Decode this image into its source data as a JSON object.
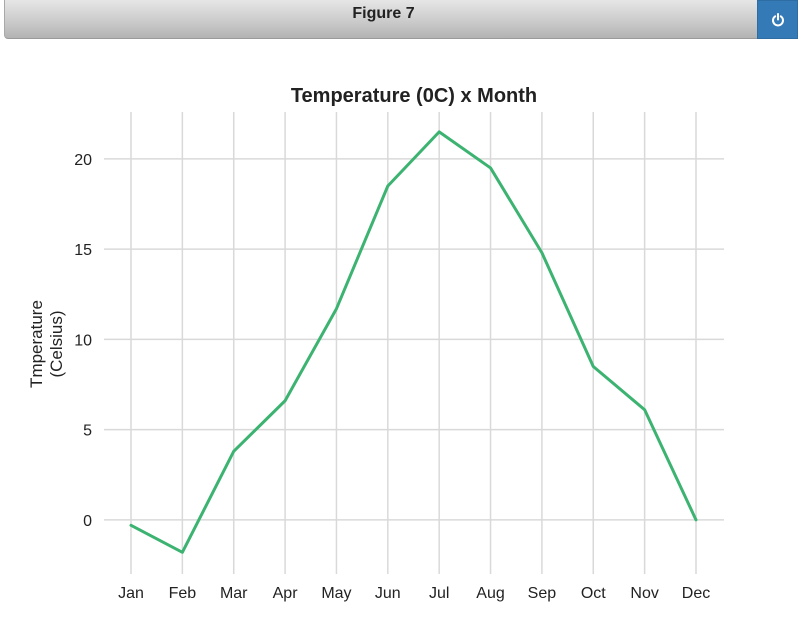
{
  "window": {
    "figure_title": "Figure 7"
  },
  "icons": {
    "power": "power-icon"
  },
  "colors": {
    "line": "#3cb371",
    "grid": "#d9d9d9",
    "button": "#337ab7"
  },
  "chart_data": {
    "type": "line",
    "title": "Temperature (0C) x Month",
    "xlabel": "",
    "ylabel": [
      "Tmperature",
      "(Celsius)"
    ],
    "categories": [
      "Jan",
      "Feb",
      "Mar",
      "Apr",
      "May",
      "Jun",
      "Jul",
      "Aug",
      "Sep",
      "Oct",
      "Nov",
      "Dec"
    ],
    "series": [
      {
        "values": [
          -0.3,
          -1.8,
          3.8,
          6.6,
          11.7,
          18.5,
          21.5,
          19.5,
          14.8,
          8.5,
          6.1,
          0.0
        ]
      }
    ],
    "yticks": [
      0,
      5,
      10,
      15,
      20
    ],
    "ylim": [
      -3,
      22.6
    ],
    "grid": true,
    "legend": "none"
  }
}
